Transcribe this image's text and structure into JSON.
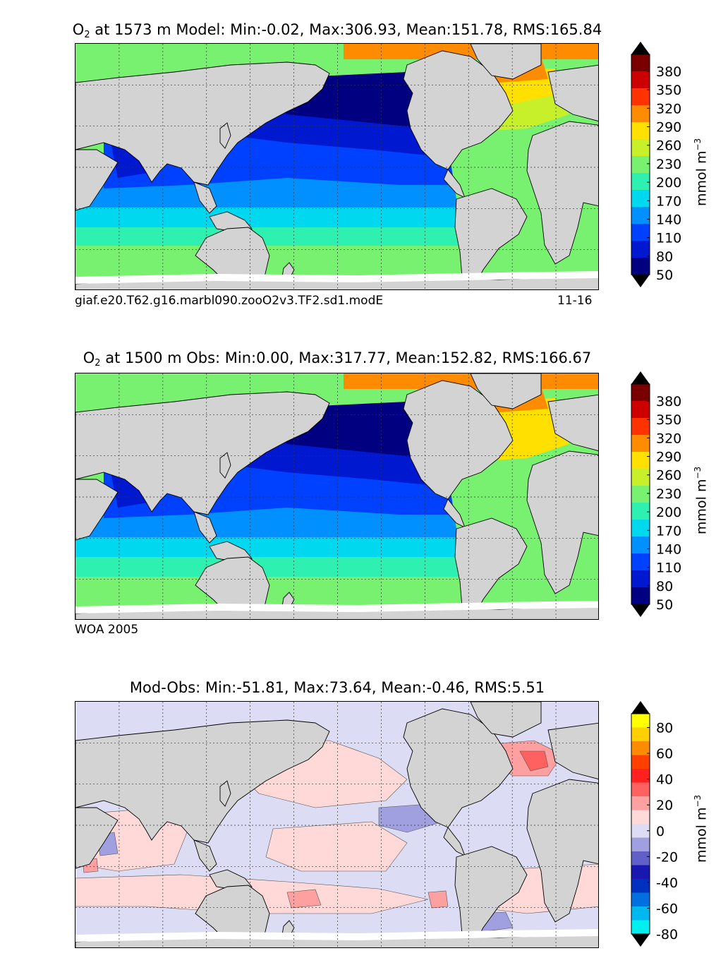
{
  "panels": [
    {
      "id": "model",
      "title_prefix": "O",
      "title_sub": "2",
      "title_rest": " at 1573 m Model: Min:-0.02, Max:306.93, Mean:151.78, RMS:165.84",
      "caption_left": "giaf.e20.T62.g16.marbl090.zooO2v3.TF2.sd1.modE",
      "caption_right": "11-16",
      "colorbar": {
        "ticks": [
          "380",
          "350",
          "320",
          "290",
          "260",
          "230",
          "200",
          "170",
          "140",
          "110",
          "80",
          "50"
        ],
        "colors": [
          "#7a0000",
          "#cc0000",
          "#ff3300",
          "#ff8c00",
          "#ffe000",
          "#c8f02a",
          "#78f070",
          "#2ef0b0",
          "#00d8f0",
          "#0090ff",
          "#0040ff",
          "#0018d0",
          "#000080"
        ],
        "over_color": "#000000",
        "under_color": "#000000",
        "unit_base": "mmol m",
        "unit_exp": "−3"
      }
    },
    {
      "id": "obs",
      "title_prefix": "O",
      "title_sub": "2",
      "title_rest": " at 1500 m Obs: Min:0.00, Max:317.77, Mean:152.82, RMS:166.67",
      "caption_left": "WOA 2005",
      "caption_right": "",
      "colorbar": {
        "ticks": [
          "380",
          "350",
          "320",
          "290",
          "260",
          "230",
          "200",
          "170",
          "140",
          "110",
          "80",
          "50"
        ],
        "colors": [
          "#7a0000",
          "#cc0000",
          "#ff3300",
          "#ff8c00",
          "#ffe000",
          "#c8f02a",
          "#78f070",
          "#2ef0b0",
          "#00d8f0",
          "#0090ff",
          "#0040ff",
          "#0018d0",
          "#000080"
        ],
        "over_color": "#000000",
        "under_color": "#000000",
        "unit_base": "mmol m",
        "unit_exp": "−3"
      }
    },
    {
      "id": "diff",
      "title_prefix": "",
      "title_sub": "",
      "title_rest": "Mod-Obs: Min:-51.81, Max:73.64, Mean:-0.46, RMS:5.51",
      "caption_left": "",
      "caption_right": "",
      "colorbar": {
        "ticks": [
          "80",
          "60",
          "40",
          "20",
          "0",
          "-20",
          "-40",
          "-60",
          "-80"
        ],
        "colors": [
          "#ffff00",
          "#ffd000",
          "#ff8c00",
          "#ff4000",
          "#ff2020",
          "#ff6060",
          "#ffa0a0",
          "#ffd8d8",
          "#dcdcf4",
          "#a0a0e0",
          "#6060c8",
          "#1818b0",
          "#0030c0",
          "#0070e0",
          "#00b8f0",
          "#00f0f0"
        ],
        "over_color": "#000000",
        "under_color": "#000000",
        "unit_base": "mmol m",
        "unit_exp": "−3"
      }
    }
  ]
}
